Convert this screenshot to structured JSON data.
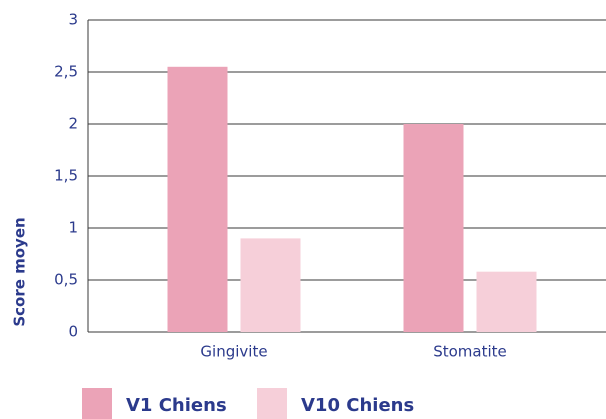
{
  "chart_data": {
    "type": "bar",
    "y_label": "Score moyen",
    "categories": [
      "Gingivite",
      "Stomatite"
    ],
    "series": [
      {
        "name": "V1 Chiens",
        "color": "#eba3b7",
        "values": [
          2.55,
          2.0
        ]
      },
      {
        "name": "V10 Chiens",
        "color": "#f6cfd9",
        "values": [
          0.9,
          0.58
        ]
      }
    ],
    "ylim": [
      0,
      3
    ],
    "yticks": [
      0,
      {
        "value": 0.5,
        "label": "0,5"
      },
      1,
      {
        "value": 1.5,
        "label": "1,5"
      },
      2,
      {
        "value": 2.5,
        "label": "2,5"
      },
      3
    ],
    "grid": true,
    "legend": "bottom"
  }
}
